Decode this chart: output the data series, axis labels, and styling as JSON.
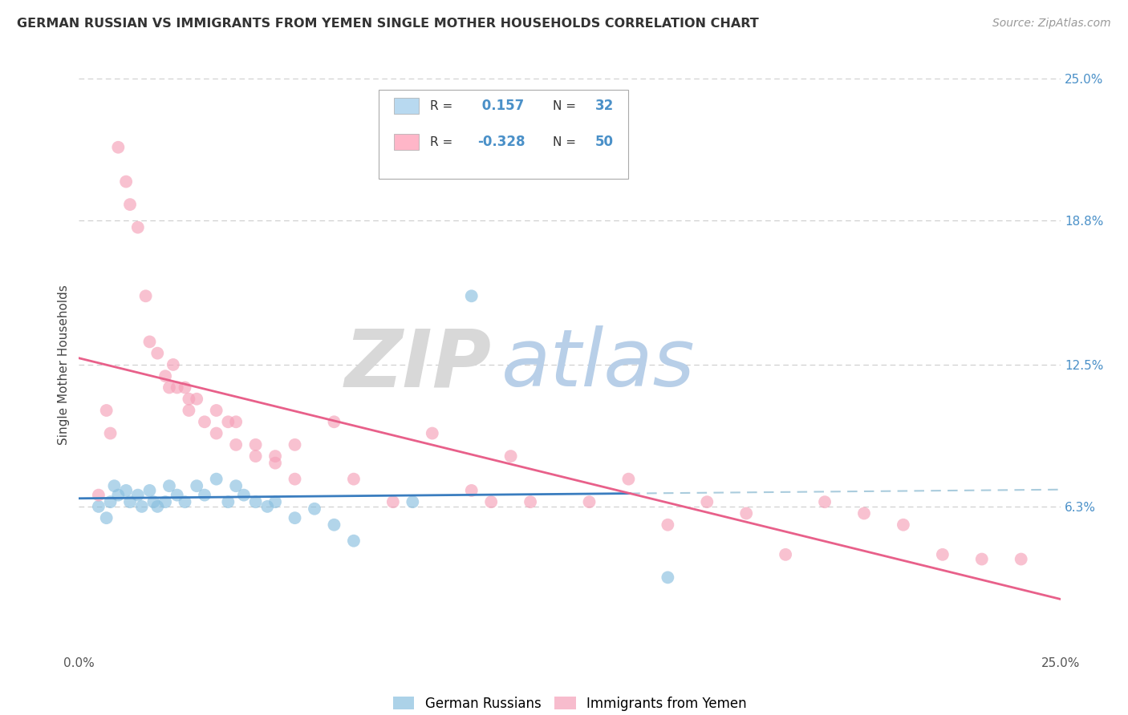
{
  "title": "GERMAN RUSSIAN VS IMMIGRANTS FROM YEMEN SINGLE MOTHER HOUSEHOLDS CORRELATION CHART",
  "source": "Source: ZipAtlas.com",
  "ylabel": "Single Mother Households",
  "xlim": [
    0.0,
    0.25
  ],
  "ylim": [
    0.0,
    0.25
  ],
  "ytick_labels_right": [
    "25.0%",
    "18.8%",
    "12.5%",
    "6.3%"
  ],
  "ytick_positions_right": [
    0.25,
    0.188,
    0.125,
    0.063
  ],
  "r1": 0.157,
  "n1": 32,
  "r2": -0.328,
  "n2": 50,
  "color_blue": "#89bfdf",
  "color_pink": "#f5a0b8",
  "legend_marker_blue": "#b8d9f0",
  "legend_marker_pink": "#ffb6c8",
  "trendline_blue_color": "#3a7dbf",
  "trendline_pink_color": "#e8608a",
  "trendline_blue_dash_color": "#aaccdd",
  "blue_points_x": [
    0.005,
    0.007,
    0.008,
    0.009,
    0.01,
    0.012,
    0.013,
    0.015,
    0.016,
    0.018,
    0.019,
    0.02,
    0.022,
    0.023,
    0.025,
    0.027,
    0.03,
    0.032,
    0.035,
    0.038,
    0.04,
    0.042,
    0.045,
    0.048,
    0.05,
    0.055,
    0.06,
    0.065,
    0.07,
    0.085,
    0.1,
    0.15
  ],
  "blue_points_y": [
    0.063,
    0.058,
    0.065,
    0.072,
    0.068,
    0.07,
    0.065,
    0.068,
    0.063,
    0.07,
    0.065,
    0.063,
    0.065,
    0.072,
    0.068,
    0.065,
    0.072,
    0.068,
    0.075,
    0.065,
    0.072,
    0.068,
    0.065,
    0.063,
    0.065,
    0.058,
    0.062,
    0.055,
    0.048,
    0.065,
    0.155,
    0.032
  ],
  "pink_points_x": [
    0.005,
    0.007,
    0.008,
    0.01,
    0.012,
    0.013,
    0.015,
    0.017,
    0.018,
    0.02,
    0.022,
    0.023,
    0.024,
    0.025,
    0.027,
    0.028,
    0.03,
    0.032,
    0.035,
    0.038,
    0.04,
    0.045,
    0.05,
    0.055,
    0.065,
    0.07,
    0.08,
    0.09,
    0.1,
    0.105,
    0.11,
    0.115,
    0.13,
    0.14,
    0.15,
    0.16,
    0.17,
    0.18,
    0.19,
    0.2,
    0.21,
    0.22,
    0.23,
    0.24,
    0.028,
    0.035,
    0.04,
    0.045,
    0.05,
    0.055
  ],
  "pink_points_y": [
    0.068,
    0.105,
    0.095,
    0.22,
    0.205,
    0.195,
    0.185,
    0.155,
    0.135,
    0.13,
    0.12,
    0.115,
    0.125,
    0.115,
    0.115,
    0.105,
    0.11,
    0.1,
    0.095,
    0.1,
    0.09,
    0.085,
    0.085,
    0.09,
    0.1,
    0.075,
    0.065,
    0.095,
    0.07,
    0.065,
    0.085,
    0.065,
    0.065,
    0.075,
    0.055,
    0.065,
    0.06,
    0.042,
    0.065,
    0.06,
    0.055,
    0.042,
    0.04,
    0.04,
    0.11,
    0.105,
    0.1,
    0.09,
    0.082,
    0.075
  ]
}
